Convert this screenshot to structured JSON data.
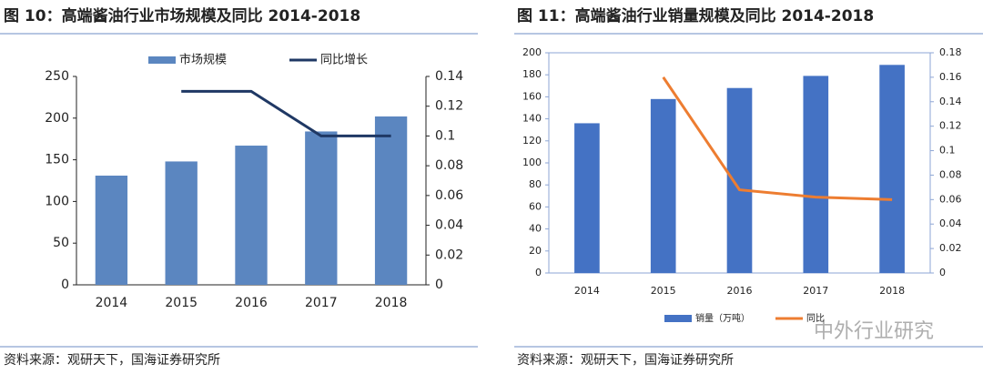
{
  "chart_data": [
    {
      "type": "bar",
      "title": "图 10：高端酱油行业市场规模及同比 2014-2018",
      "categories": [
        "2014",
        "2015",
        "2016",
        "2017",
        "2018"
      ],
      "series": [
        {
          "name": "市场规模",
          "type": "bar",
          "color": "#5b86c0",
          "values": [
            131,
            148,
            167,
            184,
            202
          ]
        },
        {
          "name": "同比增长",
          "type": "line",
          "color": "#1f3864",
          "axis": "y2",
          "values": [
            null,
            0.13,
            0.13,
            0.1,
            0.1
          ]
        }
      ],
      "ylim": [
        0,
        250
      ],
      "yticks": [
        0,
        50,
        100,
        150,
        200,
        250
      ],
      "y2lim": [
        0,
        0.14
      ],
      "y2ticks": [
        0,
        0.02,
        0.04,
        0.06,
        0.08,
        0.1,
        0.12,
        0.14
      ],
      "legend": "top",
      "source": "资料来源：观研天下，国海证券研究所"
    },
    {
      "type": "bar",
      "title": "图 11：高端酱油行业销量规模及同比 2014-2018",
      "categories": [
        "2014",
        "2015",
        "2016",
        "2017",
        "2018"
      ],
      "series": [
        {
          "name": "销量（万吨）",
          "type": "bar",
          "color": "#4472c4",
          "values": [
            136,
            158,
            168,
            179,
            189
          ]
        },
        {
          "name": "同比",
          "type": "line",
          "color": "#ed7d31",
          "axis": "y2",
          "values": [
            null,
            0.16,
            0.068,
            0.062,
            0.06
          ]
        }
      ],
      "ylim": [
        0,
        200
      ],
      "yticks": [
        0,
        20,
        40,
        60,
        80,
        100,
        120,
        140,
        160,
        180,
        200
      ],
      "y2lim": [
        0,
        0.18
      ],
      "y2ticks": [
        0,
        0.02,
        0.04,
        0.06,
        0.08,
        0.1,
        0.12,
        0.14,
        0.16,
        0.18
      ],
      "legend": "bottom",
      "source": "资料来源：观研天下，国海证券研究所"
    }
  ],
  "watermark": "中外行业研究"
}
